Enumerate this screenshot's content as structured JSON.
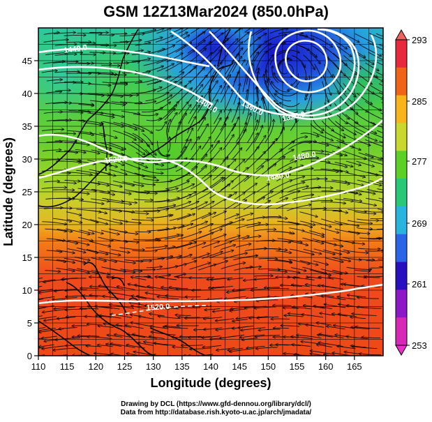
{
  "title": "GSM 12Z13Mar2024 (850.0hPa)",
  "axes": {
    "xlabel": "Longitude (degrees)",
    "ylabel": "Latitude  (degrees)",
    "x_ticks": [
      "110",
      "115",
      "120",
      "125",
      "130",
      "135",
      "140",
      "145",
      "150",
      "155",
      "160",
      "165"
    ],
    "y_ticks": [
      "0",
      "5",
      "10",
      "15",
      "20",
      "25",
      "30",
      "35",
      "40",
      "45"
    ]
  },
  "colorbar": {
    "labels": [
      "293",
      "285",
      "277",
      "269",
      "261",
      "253"
    ],
    "colors": [
      "#e8283c",
      "#f06418",
      "#f8b418",
      "#c8d82c",
      "#5cd024",
      "#28c878",
      "#28b4dc",
      "#2c64e8",
      "#2810c0",
      "#8c18c8",
      "#d828b8"
    ]
  },
  "contour_labels": [
    "1440.0",
    "1400.0",
    "1360.0",
    "1320.0",
    "1520.0",
    "1480.0",
    "1480.0",
    "1520.0"
  ],
  "credits": {
    "line1": "Drawing by DCL (https://www.gfd-dennou.org/library/dcl/)",
    "line2": "Data from http://database.rish.kyoto-u.ac.jp/arch/jmadata/"
  },
  "chart_data": {
    "type": "heatmap",
    "title": "GSM 12Z13Mar2024 (850.0hPa)",
    "xlabel": "Longitude (degrees)",
    "ylabel": "Latitude  (degrees)",
    "xlim": [
      110,
      170
    ],
    "ylim": [
      0,
      50
    ],
    "color_scale": {
      "min": 253,
      "max": 293,
      "labels": [
        293,
        285,
        277,
        269,
        261,
        253
      ]
    },
    "contour_levels": [
      1320,
      1360,
      1400,
      1440,
      1480,
      1520
    ],
    "low_center": {
      "lon": 153,
      "lat": 44
    },
    "grid": true
  }
}
